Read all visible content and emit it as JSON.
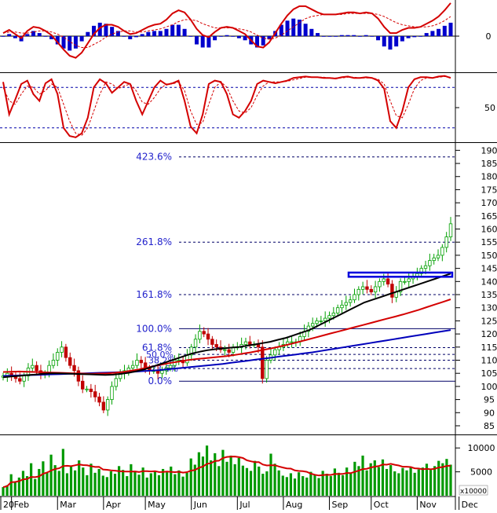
{
  "chart_data": [
    {
      "id": "macd",
      "type": "line",
      "yticks": [
        {
          "v": 0,
          "label": "0"
        }
      ],
      "zero_line": true,
      "series": [
        {
          "key": "macd",
          "style": "line",
          "color": "#d40000",
          "values": [
            0.3,
            0.6,
            0.2,
            -0.2,
            0.5,
            0.9,
            0.8,
            0.5,
            0.1,
            -0.6,
            -1.3,
            -1.9,
            -2.1,
            -1.6,
            -0.7,
            0.2,
            0.8,
            1.1,
            1.1,
            0.9,
            0.5,
            0.2,
            0.3,
            0.6,
            0.9,
            1.1,
            1.2,
            1.6,
            2.2,
            2.5,
            2.3,
            1.6,
            0.7,
            0.1,
            -0.1,
            0.4,
            0.8,
            0.9,
            0.8,
            0.5,
            0.2,
            -0.4,
            -1.0,
            -1.1,
            -0.6,
            0.3,
            1.2,
            2.0,
            2.6,
            2.9,
            2.9,
            2.6,
            2.3,
            2.1,
            2.1,
            2.1,
            2.2,
            2.3,
            2.3,
            2.2,
            2.3,
            2.2,
            1.7,
            0.9,
            0.3,
            0.3,
            0.6,
            0.8,
            0.8,
            0.9,
            1.2,
            1.5,
            1.9,
            2.5,
            3.2
          ]
        },
        {
          "key": "signal",
          "style": "dashed",
          "color": "#d40000",
          "values": [
            0.3,
            0.4,
            0.4,
            0.3,
            0.3,
            0.4,
            0.5,
            0.5,
            0.4,
            0.2,
            -0.1,
            -0.5,
            -0.9,
            -1.1,
            -1.1,
            -0.8,
            -0.5,
            -0.1,
            0.2,
            0.4,
            0.5,
            0.5,
            0.4,
            0.4,
            0.5,
            0.6,
            0.7,
            0.9,
            1.1,
            1.4,
            1.6,
            1.6,
            1.5,
            1.2,
            1.0,
            0.8,
            0.8,
            0.8,
            0.8,
            0.7,
            0.6,
            0.4,
            0.1,
            -0.2,
            -0.3,
            -0.2,
            0.1,
            0.5,
            0.9,
            1.3,
            1.7,
            1.9,
            2.0,
            2.1,
            2.1,
            2.1,
            2.1,
            2.2,
            2.2,
            2.2,
            2.2,
            2.2,
            2.1,
            1.9,
            1.6,
            1.3,
            1.1,
            1.0,
            0.9,
            0.9,
            0.9,
            1.0,
            1.2,
            1.5,
            1.9
          ]
        },
        {
          "key": "histogram",
          "style": "bar",
          "color": "#0000cc",
          "values": [
            0.0,
            0.2,
            -0.2,
            -0.5,
            0.2,
            0.5,
            0.3,
            0.0,
            -0.3,
            -0.8,
            -1.2,
            -1.4,
            -1.2,
            -0.5,
            0.4,
            1.0,
            1.3,
            1.2,
            0.9,
            0.5,
            0.0,
            -0.3,
            -0.1,
            0.2,
            0.4,
            0.5,
            0.5,
            0.7,
            1.1,
            1.1,
            0.7,
            0.0,
            -0.8,
            -1.1,
            -1.1,
            -0.4,
            0.0,
            0.1,
            0.0,
            -0.2,
            -0.4,
            -0.8,
            -1.1,
            -0.9,
            -0.3,
            0.5,
            1.1,
            1.5,
            1.7,
            1.6,
            1.2,
            0.7,
            0.3,
            0.0,
            0.0,
            0.0,
            0.1,
            0.1,
            0.1,
            0.0,
            0.1,
            0.0,
            -0.4,
            -1.0,
            -1.3,
            -1.0,
            -0.5,
            -0.2,
            -0.1,
            0.0,
            0.3,
            0.5,
            0.7,
            1.0,
            1.3
          ]
        }
      ]
    },
    {
      "id": "stochastic",
      "type": "line",
      "yticks": [
        {
          "v": 50,
          "label": "50"
        }
      ],
      "levels": [
        80,
        20
      ],
      "series": [
        {
          "key": "k",
          "style": "line",
          "color": "#d40000",
          "values": [
            88,
            40,
            62,
            85,
            90,
            70,
            60,
            86,
            92,
            70,
            20,
            8,
            6,
            12,
            35,
            80,
            92,
            86,
            72,
            80,
            88,
            85,
            60,
            40,
            60,
            80,
            90,
            84,
            86,
            90,
            60,
            22,
            12,
            40,
            85,
            90,
            88,
            70,
            40,
            35,
            45,
            60,
            85,
            90,
            88,
            86,
            88,
            90,
            94,
            95,
            96,
            95,
            95,
            94,
            94,
            93,
            95,
            96,
            94,
            94,
            95,
            94,
            90,
            78,
            30,
            20,
            45,
            80,
            92,
            95,
            95,
            94,
            96,
            97,
            94
          ]
        },
        {
          "key": "d",
          "style": "dashed",
          "color": "#d40000",
          "values": [
            80,
            60,
            55,
            70,
            82,
            80,
            70,
            75,
            85,
            80,
            55,
            30,
            12,
            9,
            20,
            45,
            70,
            88,
            85,
            78,
            82,
            85,
            75,
            58,
            55,
            65,
            78,
            85,
            85,
            88,
            75,
            45,
            25,
            28,
            55,
            80,
            88,
            80,
            60,
            45,
            42,
            50,
            68,
            82,
            88,
            88,
            88,
            89,
            91,
            93,
            95,
            95,
            95,
            95,
            94,
            94,
            94,
            95,
            95,
            94,
            94,
            94,
            92,
            85,
            60,
            38,
            35,
            55,
            78,
            90,
            94,
            94,
            95,
            96,
            95
          ]
        }
      ]
    },
    {
      "id": "price",
      "type": "candlestick",
      "yticks": [
        {
          "v": 85,
          "label": "85"
        },
        {
          "v": 90,
          "label": "90"
        },
        {
          "v": 95,
          "label": "95"
        },
        {
          "v": 100,
          "label": "100"
        },
        {
          "v": 105,
          "label": "105"
        },
        {
          "v": 110,
          "label": "110"
        },
        {
          "v": 115,
          "label": "115"
        },
        {
          "v": 120,
          "label": "120"
        },
        {
          "v": 125,
          "label": "125"
        },
        {
          "v": 130,
          "label": "130"
        },
        {
          "v": 135,
          "label": "135"
        },
        {
          "v": 140,
          "label": "140"
        },
        {
          "v": 145,
          "label": "145"
        },
        {
          "v": 150,
          "label": "150"
        },
        {
          "v": 155,
          "label": "155"
        },
        {
          "v": 160,
          "label": "160"
        },
        {
          "v": 165,
          "label": "165"
        },
        {
          "v": 170,
          "label": "170"
        },
        {
          "v": 175,
          "label": "175"
        },
        {
          "v": 180,
          "label": "180"
        },
        {
          "v": 185,
          "label": "185"
        },
        {
          "v": 190,
          "label": "190"
        }
      ],
      "fib_levels": [
        {
          "label": "423.6%",
          "v": 187.5
        },
        {
          "label": "261.8%",
          "v": 155.0
        },
        {
          "label": "161.8%",
          "v": 135.0
        },
        {
          "label": "100.0%",
          "v": 122.0
        },
        {
          "label": "61.8%",
          "v": 114.8
        },
        {
          "label": "50.0%",
          "v": 112.2
        },
        {
          "label": "38.2%",
          "v": 110.0
        },
        {
          "label": "23.6%",
          "v": 106.8
        },
        {
          "label": "0.0%",
          "v": 102.0
        }
      ],
      "support_rect": {
        "y_low": 141.8,
        "y_high": 143.4
      },
      "closes": [
        104,
        105,
        104,
        103,
        102,
        104,
        107,
        108,
        106,
        105,
        105,
        108,
        110,
        113,
        115,
        111,
        108,
        106,
        102,
        99,
        99,
        98,
        96,
        94,
        91,
        95,
        100,
        103,
        105,
        106,
        107,
        108,
        110,
        109,
        107,
        106,
        106,
        105,
        106,
        107,
        108,
        110,
        110,
        109,
        112,
        115,
        118,
        121,
        120,
        118,
        116,
        115,
        114,
        114,
        113,
        115,
        115,
        116,
        117,
        116,
        116,
        115,
        103,
        110,
        112,
        114,
        115,
        116,
        117,
        117,
        117,
        119,
        121,
        123,
        124,
        125,
        125,
        126,
        127,
        128,
        130,
        131,
        132,
        133,
        135,
        137,
        138,
        137,
        136,
        138,
        140,
        141,
        139,
        134,
        136,
        140,
        140,
        141,
        142,
        143,
        145,
        146,
        148,
        149,
        150,
        153,
        157,
        162
      ],
      "ma_black": [
        103.5,
        103.8,
        104,
        104.3,
        104.5,
        104.8,
        105,
        105,
        104.9,
        104.8,
        104.7,
        104.6,
        104.5,
        104.4,
        104.5,
        104.8,
        105.2,
        105.8,
        106.5,
        107.5,
        108.5,
        109.5,
        110.5,
        111.5,
        112.5,
        113.2,
        113.8,
        114.2,
        114.5,
        114.8,
        115,
        115.5,
        116,
        116.5,
        117,
        117.8,
        118.5,
        119.5,
        120.5,
        121.5,
        123,
        124.5,
        126,
        127.5,
        129,
        130.5,
        132,
        133,
        134,
        135,
        136,
        137,
        138,
        139,
        140,
        141,
        142,
        143
      ],
      "ma_red": [
        105.5,
        105.6,
        105.7,
        105.6,
        105.5,
        105.4,
        105.3,
        105.2,
        105.1,
        105,
        104.9,
        104.8,
        104.9,
        105,
        105.2,
        105.5,
        106,
        106.5,
        107.2,
        107.8,
        108.4,
        109,
        109.5,
        110,
        110.4,
        110.7,
        111,
        111.3,
        111.6,
        112,
        112.5,
        113,
        113.6,
        114.2,
        114.8,
        115.5,
        116.2,
        117,
        117.8,
        118.6,
        119.4,
        120.2,
        121,
        121.8,
        122.6,
        123.4,
        124.2,
        125,
        125.8,
        126.6,
        127.4,
        128.3,
        129.2,
        130.2,
        131.2,
        132.2,
        133.2
      ],
      "ma_blue": [
        104,
        104.1,
        104.2,
        104.3,
        104.4,
        104.5,
        104.6,
        104.7,
        104.8,
        104.9,
        105,
        105.1,
        105.2,
        105.3,
        105.4,
        105.5,
        105.6,
        105.8,
        106,
        106.2,
        106.5,
        106.8,
        107.1,
        107.4,
        107.7,
        108,
        108.3,
        108.6,
        109,
        109.4,
        109.8,
        110.2,
        110.6,
        111,
        111.4,
        111.8,
        112.2,
        112.6,
        113,
        113.5,
        114,
        114.5,
        115,
        115.5,
        116,
        116.5,
        117,
        117.5,
        118,
        118.5,
        119,
        119.5,
        120,
        120.5,
        121,
        121.5
      ]
    },
    {
      "id": "volume",
      "type": "bar",
      "unit": "x10000",
      "yticks": [
        {
          "v": 5000,
          "label": "5000"
        },
        {
          "v": 10000,
          "label": "10000"
        }
      ],
      "values": [
        1800,
        2200,
        4500,
        3000,
        3800,
        5200,
        4100,
        6800,
        3500,
        5600,
        7200,
        4800,
        8600,
        6400,
        5200,
        9800,
        4700,
        6100,
        5300,
        7400,
        5900,
        4300,
        6700,
        4800,
        5600,
        4200,
        3900,
        5100,
        4600,
        6200,
        5400,
        4100,
        6600,
        5200,
        4400,
        5900,
        3800,
        4700,
        5100,
        4300,
        5600,
        4900,
        6100,
        4500,
        5300,
        4000,
        4800,
        7800,
        6500,
        9100,
        8200,
        10500,
        7400,
        8900,
        6200,
        9600,
        7100,
        8400,
        6600,
        7900,
        6300,
        5800,
        5200,
        7300,
        6100,
        4600,
        5100,
        8800,
        6700,
        5300,
        4200,
        3900,
        4700,
        3600,
        4900,
        4100,
        3800,
        5000,
        4400,
        3700,
        5200,
        4600,
        4100,
        5700,
        4800,
        4300,
        5900,
        4600,
        7100,
        6200,
        8400,
        5300,
        6800,
        7400,
        6000,
        7600,
        5600,
        6400,
        5100,
        4700,
        5800,
        5300,
        6100,
        4800,
        5500,
        5900,
        6700,
        5400,
        6200,
        7300,
        6800,
        7700,
        6500
      ]
    }
  ],
  "x_axis": {
    "labels": [
      {
        "label": "20",
        "idx": -4
      },
      {
        "label": "Feb",
        "idx": 2
      },
      {
        "label": "Mar",
        "idx": 13
      },
      {
        "label": "Apr",
        "idx": 24
      },
      {
        "label": "May",
        "idx": 34
      },
      {
        "label": "Jun",
        "idx": 45
      },
      {
        "label": "Jul",
        "idx": 56
      },
      {
        "label": "Aug",
        "idx": 67
      },
      {
        "label": "Sep",
        "idx": 78
      },
      {
        "label": "Oct",
        "idx": 88
      },
      {
        "label": "Nov",
        "idx": 99
      },
      {
        "label": "Dec",
        "idx": 109
      }
    ]
  },
  "colors": {
    "bull": "#00a000",
    "bear": "#c00000",
    "fib_text": "#2222cc",
    "ma_black": "#000000",
    "ma_red": "#d40000",
    "ma_blue": "#0000bb",
    "volume_bar": "#009900",
    "volume_ma": "#d40000"
  }
}
